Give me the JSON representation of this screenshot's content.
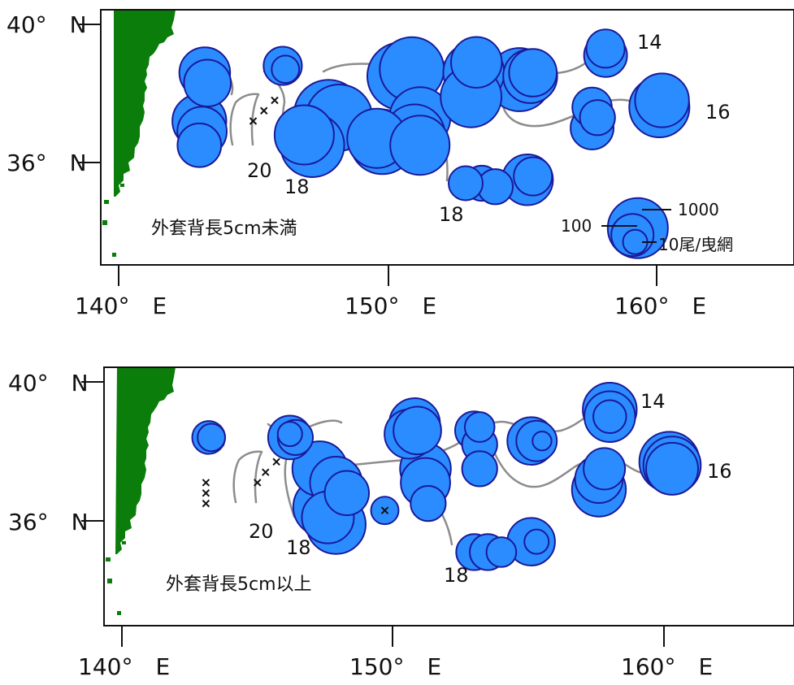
{
  "colors": {
    "land": "#0a7d0a",
    "bubble_fill": "#2b8cff",
    "bubble_edge": "#1a1a9a",
    "isotherm": "#8c8c8c",
    "no_catch_marker": "#111111"
  },
  "axes": {
    "lat_labels": [
      "40°　N",
      "36°　N"
    ],
    "lon_labels": [
      "140°　E",
      "150°　E",
      "160°　E"
    ]
  },
  "legend": {
    "labels": [
      "1000",
      "100",
      "10尾/曳網"
    ],
    "values": [
      1000,
      100,
      10
    ]
  },
  "panels": [
    {
      "label": "外套背長5cm未満",
      "isotherm_labels": [
        "14",
        "16",
        "18",
        "18",
        "20"
      ],
      "catches": [
        {
          "lon": 143.2,
          "lat": 38.6,
          "n": 300
        },
        {
          "lon": 143.3,
          "lat": 38.3,
          "n": 180
        },
        {
          "lon": 143.0,
          "lat": 37.2,
          "n": 450
        },
        {
          "lon": 143.1,
          "lat": 36.9,
          "n": 250
        },
        {
          "lon": 143.0,
          "lat": 36.5,
          "n": 120
        },
        {
          "lon": 146.1,
          "lat": 38.8,
          "n": 60
        },
        {
          "lon": 146.2,
          "lat": 38.7,
          "n": 15
        },
        {
          "lon": 147.8,
          "lat": 37.4,
          "n": 3000
        },
        {
          "lon": 148.2,
          "lat": 37.3,
          "n": 2200
        },
        {
          "lon": 147.2,
          "lat": 36.5,
          "n": 1600
        },
        {
          "lon": 146.9,
          "lat": 36.8,
          "n": 900
        },
        {
          "lon": 149.8,
          "lat": 36.6,
          "n": 1800
        },
        {
          "lon": 149.6,
          "lat": 36.7,
          "n": 900
        },
        {
          "lon": 150.5,
          "lat": 38.5,
          "n": 2600
        },
        {
          "lon": 150.9,
          "lat": 38.7,
          "n": 1700
        },
        {
          "lon": 151.2,
          "lat": 37.3,
          "n": 1100
        },
        {
          "lon": 151.0,
          "lat": 36.8,
          "n": 1100
        },
        {
          "lon": 151.2,
          "lat": 36.5,
          "n": 900
        },
        {
          "lon": 153.2,
          "lat": 38.6,
          "n": 1100
        },
        {
          "lon": 153.1,
          "lat": 37.9,
          "n": 1100
        },
        {
          "lon": 153.3,
          "lat": 38.9,
          "n": 300
        },
        {
          "lon": 154.9,
          "lat": 38.4,
          "n": 1500
        },
        {
          "lon": 155.3,
          "lat": 38.5,
          "n": 450
        },
        {
          "lon": 155.4,
          "lat": 38.6,
          "n": 200
        },
        {
          "lon": 152.9,
          "lat": 35.4,
          "n": 35
        },
        {
          "lon": 153.5,
          "lat": 35.4,
          "n": 40
        },
        {
          "lon": 154.0,
          "lat": 35.3,
          "n": 40
        },
        {
          "lon": 155.2,
          "lat": 35.5,
          "n": 300
        },
        {
          "lon": 155.4,
          "lat": 35.6,
          "n": 60
        },
        {
          "lon": 157.6,
          "lat": 37.0,
          "n": 110
        },
        {
          "lon": 157.6,
          "lat": 37.6,
          "n": 70
        },
        {
          "lon": 157.8,
          "lat": 37.3,
          "n": 40
        },
        {
          "lon": 158.1,
          "lat": 39.1,
          "n": 110
        },
        {
          "lon": 158.1,
          "lat": 39.3,
          "n": 60
        },
        {
          "lon": 160.1,
          "lat": 37.6,
          "n": 1000
        },
        {
          "lon": 160.2,
          "lat": 37.8,
          "n": 450
        },
        {
          "lon": 159.3,
          "lat": 34.1,
          "n": 1000
        },
        {
          "lon": 159.1,
          "lat": 33.9,
          "n": 100
        },
        {
          "lon": 159.2,
          "lat": 33.7,
          "n": 10
        }
      ],
      "no_catch": [
        {
          "lon": 145.0,
          "lat": 37.2
        },
        {
          "lon": 145.4,
          "lat": 37.5
        },
        {
          "lon": 145.8,
          "lat": 37.8
        }
      ]
    },
    {
      "label": "外套背長5cm以上",
      "isotherm_labels": [
        "14",
        "16",
        "18",
        "18",
        "20"
      ],
      "catches": [
        {
          "lon": 143.2,
          "lat": 38.4,
          "n": 30
        },
        {
          "lon": 143.3,
          "lat": 38.4,
          "n": 15
        },
        {
          "lon": 146.2,
          "lat": 38.4,
          "n": 120
        },
        {
          "lon": 146.4,
          "lat": 38.4,
          "n": 40
        },
        {
          "lon": 146.2,
          "lat": 38.5,
          "n": 10
        },
        {
          "lon": 147.3,
          "lat": 37.5,
          "n": 500
        },
        {
          "lon": 147.9,
          "lat": 37.1,
          "n": 350
        },
        {
          "lon": 148.3,
          "lat": 36.8,
          "n": 130
        },
        {
          "lon": 147.4,
          "lat": 36.4,
          "n": 800
        },
        {
          "lon": 147.9,
          "lat": 35.9,
          "n": 900
        },
        {
          "lon": 147.6,
          "lat": 36.1,
          "n": 350
        },
        {
          "lon": 149.7,
          "lat": 36.3,
          "n": 15
        },
        {
          "lon": 150.8,
          "lat": 38.8,
          "n": 300
        },
        {
          "lon": 150.6,
          "lat": 38.5,
          "n": 250
        },
        {
          "lon": 150.9,
          "lat": 38.6,
          "n": 200
        },
        {
          "lon": 151.2,
          "lat": 37.5,
          "n": 300
        },
        {
          "lon": 151.2,
          "lat": 37.1,
          "n": 250
        },
        {
          "lon": 151.3,
          "lat": 36.5,
          "n": 40
        },
        {
          "lon": 153.0,
          "lat": 38.6,
          "n": 60
        },
        {
          "lon": 153.2,
          "lat": 38.7,
          "n": 20
        },
        {
          "lon": 153.2,
          "lat": 38.2,
          "n": 40
        },
        {
          "lon": 153.2,
          "lat": 37.5,
          "n": 40
        },
        {
          "lon": 155.1,
          "lat": 38.3,
          "n": 200
        },
        {
          "lon": 155.3,
          "lat": 38.3,
          "n": 80
        },
        {
          "lon": 155.5,
          "lat": 38.3,
          "n": 5
        },
        {
          "lon": 153.0,
          "lat": 35.1,
          "n": 45
        },
        {
          "lon": 153.5,
          "lat": 35.1,
          "n": 45
        },
        {
          "lon": 154.0,
          "lat": 35.1,
          "n": 20
        },
        {
          "lon": 155.1,
          "lat": 35.4,
          "n": 200
        },
        {
          "lon": 155.3,
          "lat": 35.4,
          "n": 10
        },
        {
          "lon": 158.0,
          "lat": 39.2,
          "n": 450
        },
        {
          "lon": 158.0,
          "lat": 39.0,
          "n": 300
        },
        {
          "lon": 158.0,
          "lat": 39.0,
          "n": 30
        },
        {
          "lon": 157.6,
          "lat": 36.9,
          "n": 450
        },
        {
          "lon": 157.6,
          "lat": 37.2,
          "n": 200
        },
        {
          "lon": 157.8,
          "lat": 37.5,
          "n": 90
        },
        {
          "lon": 160.2,
          "lat": 37.7,
          "n": 1000
        },
        {
          "lon": 160.3,
          "lat": 37.6,
          "n": 700
        },
        {
          "lon": 160.3,
          "lat": 37.5,
          "n": 350
        }
      ],
      "no_catch": [
        {
          "lon": 143.1,
          "lat": 37.1
        },
        {
          "lon": 143.1,
          "lat": 36.8
        },
        {
          "lon": 143.1,
          "lat": 36.5
        },
        {
          "lon": 145.0,
          "lat": 37.1
        },
        {
          "lon": 145.3,
          "lat": 37.4
        },
        {
          "lon": 145.7,
          "lat": 37.7
        },
        {
          "lon": 149.7,
          "lat": 36.3
        }
      ]
    }
  ]
}
